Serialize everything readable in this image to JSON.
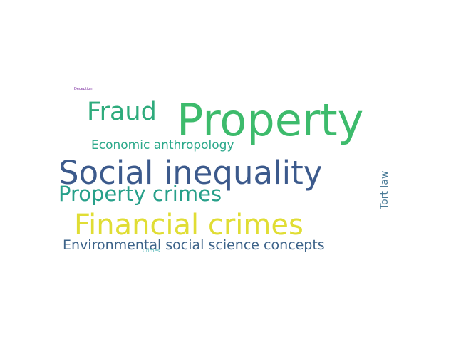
{
  "word_cloud": {
    "words": [
      {
        "text": "Property",
        "color": "#3dbb6c",
        "orientation": "horizontal"
      },
      {
        "text": "Social inequality",
        "color": "#3c5a8c",
        "orientation": "horizontal"
      },
      {
        "text": "Financial crimes",
        "color": "#e0dd34",
        "orientation": "horizontal"
      },
      {
        "text": "Fraud",
        "color": "#2eab7c",
        "orientation": "horizontal"
      },
      {
        "text": "Property crimes",
        "color": "#27a08a",
        "orientation": "horizontal"
      },
      {
        "text": "Economic anthropology",
        "color": "#2aa88a",
        "orientation": "horizontal"
      },
      {
        "text": "Environmental social science concepts",
        "color": "#3d6389",
        "orientation": "horizontal"
      },
      {
        "text": "Tort law",
        "color": "#4a7b97",
        "orientation": "vertical"
      },
      {
        "text": "Deception",
        "color": "#7a2a9e",
        "orientation": "horizontal"
      },
      {
        "text": "Crimes",
        "color": "#4ab3b3",
        "orientation": "horizontal"
      }
    ]
  }
}
